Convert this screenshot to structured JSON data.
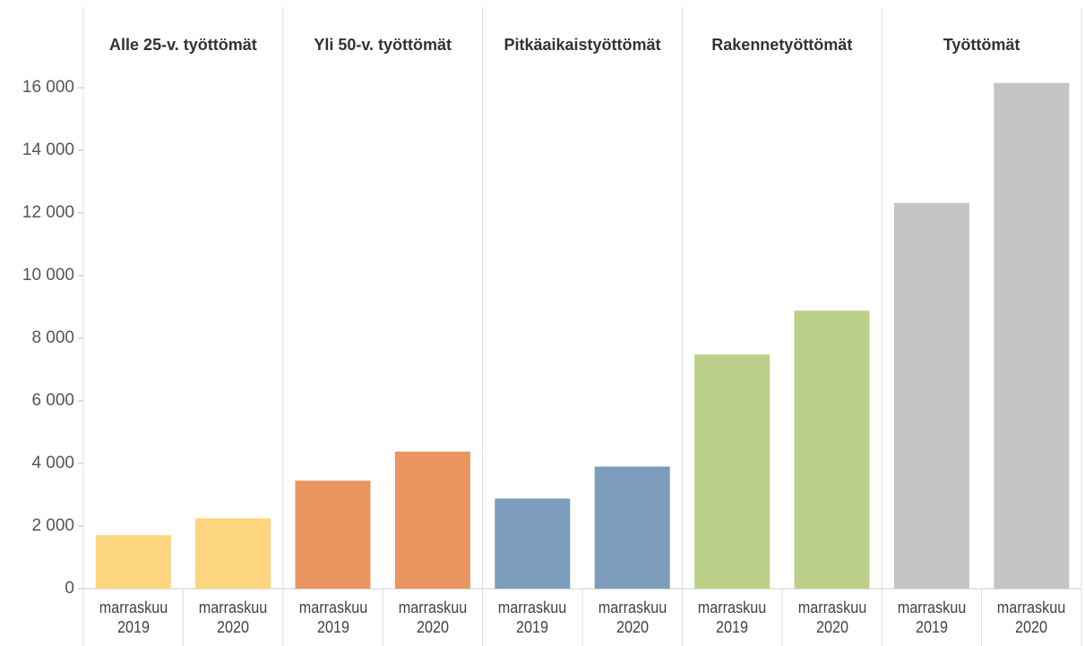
{
  "chart_data": {
    "type": "bar",
    "categories": [
      "marraskuu 2019",
      "marraskuu 2020"
    ],
    "series": [
      {
        "name": "Alle 25-v. työttömät",
        "color": "#fdd57e",
        "values": [
          1710,
          2250
        ]
      },
      {
        "name": "Yli 50-v. työttömät",
        "color": "#e8955f",
        "values": [
          3450,
          4380
        ]
      },
      {
        "name": "Pitkäaikaistyöttömät",
        "color": "#7b9dbb",
        "values": [
          2880,
          3900
        ]
      },
      {
        "name": "Rakennetyöttömät",
        "color": "#bcd08a",
        "values": [
          7480,
          8880
        ]
      },
      {
        "name": "Työttömät",
        "color": "#c4c4c4",
        "values": [
          12320,
          16150
        ]
      }
    ],
    "ylim": [
      0,
      16800
    ],
    "yticks": [
      0,
      {
        "value": 2000,
        "label": "2 000"
      },
      {
        "value": 4000,
        "label": "4 000"
      },
      {
        "value": 6000,
        "label": "6 000"
      },
      {
        "value": 8000,
        "label": "8 000"
      },
      {
        "value": 10000,
        "label": "10 000"
      },
      {
        "value": 12000,
        "label": "12 000"
      },
      {
        "value": 14000,
        "label": "14 000"
      },
      {
        "value": 16000,
        "label": "16 000"
      }
    ]
  }
}
